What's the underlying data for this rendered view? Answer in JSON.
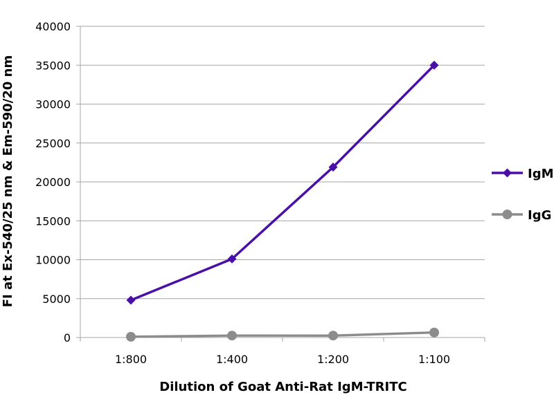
{
  "chart_data": {
    "type": "line",
    "categories": [
      "1:800",
      "1:400",
      "1:200",
      "1:100"
    ],
    "series": [
      {
        "name": "IgM",
        "values": [
          4800,
          10100,
          21900,
          35000
        ],
        "color": "#4a0fa6",
        "marker": "diamond"
      },
      {
        "name": "IgG",
        "values": [
          100,
          250,
          250,
          650
        ],
        "color": "#8c8c8c",
        "marker": "circle"
      }
    ],
    "xlabel": "Dilution of Goat Anti-Rat IgM-TRITC",
    "ylabel": "FI at Ex-540/25 nm & Em-590/20 nm",
    "ylim": [
      0,
      40000
    ],
    "yticks": [
      0,
      5000,
      10000,
      15000,
      20000,
      25000,
      30000,
      35000,
      40000
    ],
    "grid": true,
    "legend_position": "right",
    "gridline_color": "#a6a6a6"
  }
}
